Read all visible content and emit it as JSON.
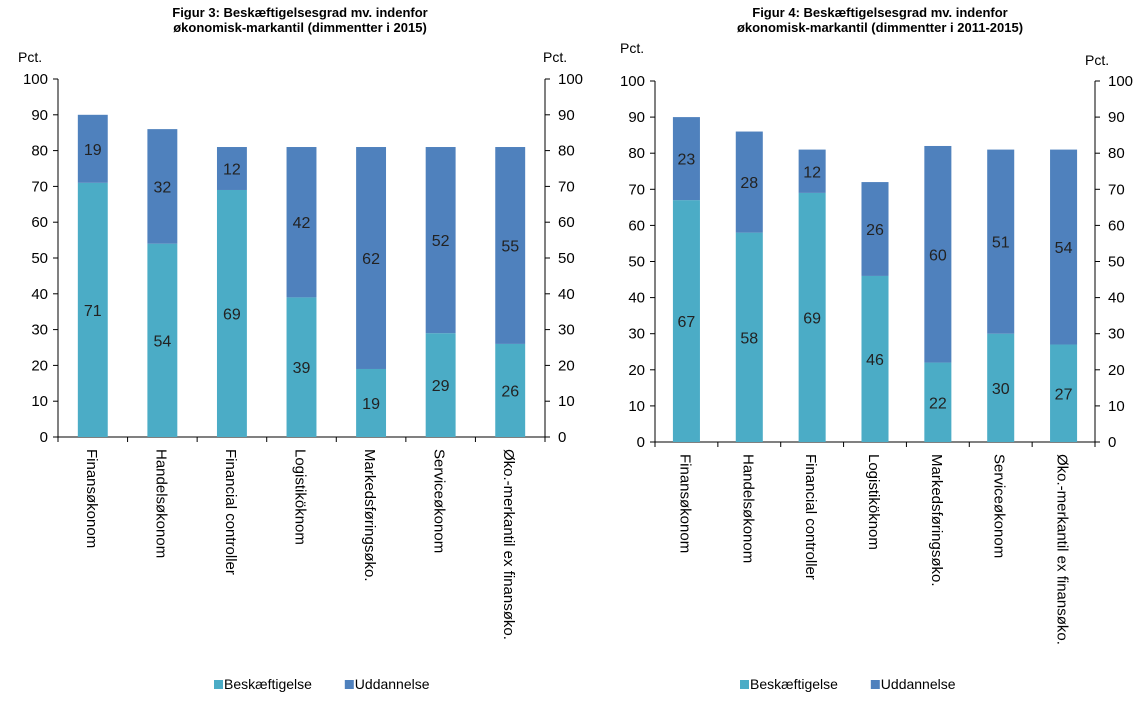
{
  "chart_data": [
    {
      "type": "bar",
      "stacked": true,
      "title": "Figur 3: Beskæftigelsesgrad mv. indenfor\nøkonomisk-markantil (dimmentter i 2015)",
      "ylabel_left": "Pct.",
      "ylabel_right": "Pct.",
      "ylim": [
        0,
        100
      ],
      "yticks": [
        0,
        10,
        20,
        30,
        40,
        50,
        60,
        70,
        80,
        90,
        100
      ],
      "legend_position": "bottom",
      "categories": [
        "Finansøkonom",
        "Handelsøkonom",
        "Financial controller",
        "Logistiköknom",
        "Markedsføringsøko.",
        "Serviceøkonom",
        "Øko.-merkantil ex finansøko."
      ],
      "series": [
        {
          "name": "Beskæftigelse",
          "color": "#4BACC6",
          "values": [
            71,
            54,
            69,
            39,
            19,
            29,
            26
          ]
        },
        {
          "name": "Uddannelse",
          "color": "#4F81BD",
          "values": [
            19,
            32,
            12,
            42,
            62,
            52,
            55
          ]
        }
      ]
    },
    {
      "type": "bar",
      "stacked": true,
      "title": "Figur 4: Beskæftigelsesgrad mv. indenfor\nøkonomisk-markantil (dimmentter i 2011-2015)",
      "ylabel_left": "Pct.",
      "ylabel_right": "Pct.",
      "ylim": [
        0,
        100
      ],
      "yticks": [
        0,
        10,
        20,
        30,
        40,
        50,
        60,
        70,
        80,
        90,
        100
      ],
      "legend_position": "bottom",
      "categories": [
        "Finansøkonom",
        "Handelsøkonom",
        "Financial controller",
        "Logistiköknom",
        "Markedsføringsøko.",
        "Serviceøkonom",
        "Øko.-merkantil ex finansøko."
      ],
      "series": [
        {
          "name": "Beskæftigelse",
          "color": "#4BACC6",
          "values": [
            67,
            58,
            69,
            46,
            22,
            30,
            27
          ]
        },
        {
          "name": "Uddannelse",
          "color": "#4F81BD",
          "values": [
            23,
            28,
            12,
            26,
            60,
            51,
            54
          ]
        }
      ]
    }
  ]
}
